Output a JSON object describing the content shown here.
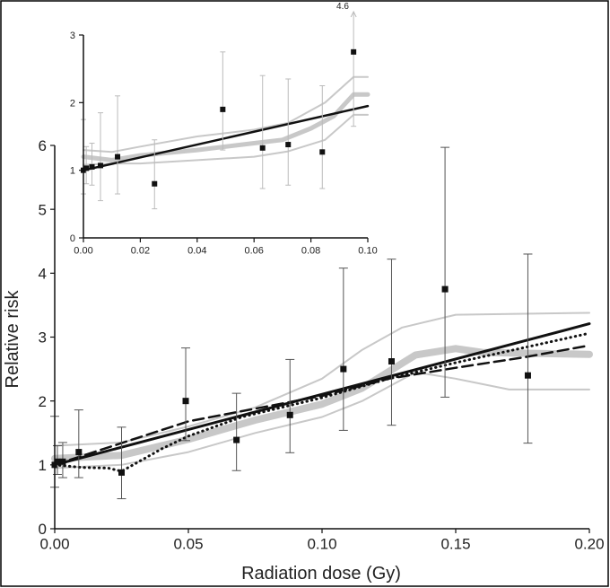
{
  "chart_data": [
    {
      "type": "scatter",
      "xlabel": "Radiation dose (Gy)",
      "ylabel": "Relative risk",
      "xlim": [
        0,
        0.2
      ],
      "ylim": [
        0,
        6
      ],
      "x_ticks": [
        "0.00",
        "0.05",
        "0.10",
        "0.15",
        "0.20"
      ],
      "y_ticks": [
        "0",
        "1",
        "2",
        "3",
        "4",
        "5",
        "6"
      ],
      "points": [
        {
          "x": 0.0,
          "y": 1.0,
          "lo": 0.65,
          "hi": 1.76
        },
        {
          "x": 0.001,
          "y": 1.05,
          "lo": 0.85,
          "hi": 1.3
        },
        {
          "x": 0.003,
          "y": 1.05,
          "lo": 0.8,
          "hi": 1.35
        },
        {
          "x": 0.009,
          "y": 1.2,
          "lo": 0.8,
          "hi": 1.86
        },
        {
          "x": 0.025,
          "y": 0.88,
          "lo": 0.47,
          "hi": 1.59
        },
        {
          "x": 0.049,
          "y": 2.0,
          "lo": 1.38,
          "hi": 2.83
        },
        {
          "x": 0.068,
          "y": 1.39,
          "lo": 0.91,
          "hi": 2.12
        },
        {
          "x": 0.088,
          "y": 1.78,
          "lo": 1.19,
          "hi": 2.65
        },
        {
          "x": 0.108,
          "y": 2.5,
          "lo": 1.54,
          "hi": 4.08
        },
        {
          "x": 0.126,
          "y": 2.62,
          "lo": 1.62,
          "hi": 4.22
        },
        {
          "x": 0.146,
          "y": 3.75,
          "lo": 2.06,
          "hi": 5.97
        },
        {
          "x": 0.177,
          "y": 2.4,
          "lo": 1.34,
          "hi": 4.3
        }
      ],
      "lines": [
        {
          "style": "solid",
          "x": [
            0,
            0.2
          ],
          "y": [
            1.0,
            3.21
          ]
        },
        {
          "style": "dashed",
          "x": [
            0,
            0.05,
            0.1,
            0.125,
            0.15,
            0.175,
            0.2
          ],
          "y": [
            1.0,
            1.68,
            2.08,
            2.35,
            2.52,
            2.68,
            2.87
          ]
        },
        {
          "style": "dotted",
          "x": [
            0,
            0.01,
            0.02,
            0.025,
            0.04,
            0.05,
            0.07,
            0.09,
            0.1,
            0.125,
            0.15,
            0.175,
            0.2
          ],
          "y": [
            1.0,
            0.96,
            0.95,
            0.9,
            1.25,
            1.45,
            1.75,
            1.95,
            2.05,
            2.35,
            2.6,
            2.83,
            3.06
          ]
        },
        {
          "style": "smooth",
          "x": [
            0,
            0.025,
            0.05,
            0.075,
            0.1,
            0.115,
            0.135,
            0.15,
            0.16,
            0.2
          ],
          "y": [
            1.1,
            1.15,
            1.4,
            1.7,
            1.95,
            2.2,
            2.72,
            2.82,
            2.76,
            2.73
          ]
        },
        {
          "style": "ci-upper",
          "x": [
            0,
            0.025,
            0.05,
            0.075,
            0.1,
            0.115,
            0.13,
            0.15,
            0.2
          ],
          "y": [
            1.3,
            1.35,
            1.6,
            1.9,
            2.35,
            2.8,
            3.15,
            3.35,
            3.38
          ]
        },
        {
          "style": "ci-lower",
          "x": [
            0,
            0.025,
            0.05,
            0.075,
            0.1,
            0.115,
            0.135,
            0.15,
            0.17,
            0.2
          ],
          "y": [
            0.95,
            1.0,
            1.2,
            1.5,
            1.75,
            2.0,
            2.45,
            2.35,
            2.18,
            2.18
          ]
        }
      ]
    },
    {
      "type": "scatter",
      "xlim": [
        0,
        0.1
      ],
      "ylim": [
        0,
        3
      ],
      "x_ticks": [
        "0.00",
        "0.02",
        "0.04",
        "0.06",
        "0.08",
        "0.10"
      ],
      "y_ticks": [
        "0",
        "1",
        "2",
        "3"
      ],
      "annotation": "4.6",
      "points": [
        {
          "x": 0.0,
          "y": 1.0,
          "lo": 0.65,
          "hi": 1.75
        },
        {
          "x": 0.001,
          "y": 1.03,
          "lo": 0.8,
          "hi": 1.35
        },
        {
          "x": 0.003,
          "y": 1.05,
          "lo": 0.78,
          "hi": 1.4
        },
        {
          "x": 0.006,
          "y": 1.07,
          "lo": 0.55,
          "hi": 1.85
        },
        {
          "x": 0.012,
          "y": 1.2,
          "lo": 0.65,
          "hi": 2.1
        },
        {
          "x": 0.025,
          "y": 0.8,
          "lo": 0.43,
          "hi": 1.45
        },
        {
          "x": 0.049,
          "y": 1.9,
          "lo": 1.3,
          "hi": 2.75
        },
        {
          "x": 0.063,
          "y": 1.33,
          "lo": 0.73,
          "hi": 2.4
        },
        {
          "x": 0.072,
          "y": 1.38,
          "lo": 0.78,
          "hi": 2.35
        },
        {
          "x": 0.084,
          "y": 1.27,
          "lo": 0.73,
          "hi": 2.25
        },
        {
          "x": 0.095,
          "y": 2.75,
          "lo": 1.65,
          "hi": 4.6
        }
      ],
      "lines": [
        {
          "style": "solid",
          "x": [
            0,
            0.1
          ],
          "y": [
            1.0,
            1.95
          ]
        },
        {
          "style": "smooth",
          "x": [
            0,
            0.01,
            0.02,
            0.04,
            0.06,
            0.07,
            0.08,
            0.088,
            0.095,
            0.1
          ],
          "y": [
            1.2,
            1.15,
            1.22,
            1.3,
            1.4,
            1.45,
            1.62,
            1.8,
            2.12,
            2.12
          ]
        },
        {
          "style": "ci-upper",
          "x": [
            0,
            0.01,
            0.02,
            0.04,
            0.06,
            0.072,
            0.085,
            0.095,
            0.1
          ],
          "y": [
            1.3,
            1.27,
            1.35,
            1.5,
            1.6,
            1.7,
            2.0,
            2.38,
            2.38
          ]
        },
        {
          "style": "ci-lower",
          "x": [
            0,
            0.01,
            0.02,
            0.04,
            0.06,
            0.072,
            0.085,
            0.095,
            0.1
          ],
          "y": [
            1.08,
            1.1,
            1.1,
            1.15,
            1.2,
            1.28,
            1.45,
            1.82,
            1.82
          ]
        }
      ]
    }
  ]
}
